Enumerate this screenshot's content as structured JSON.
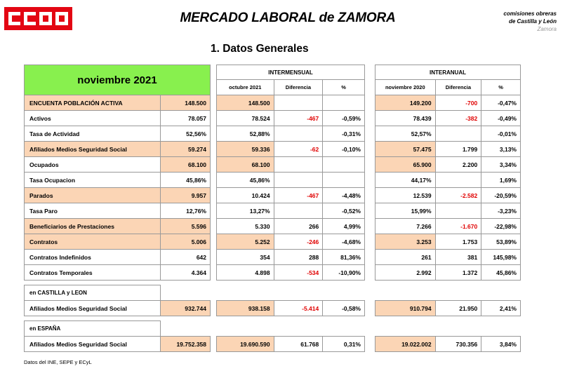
{
  "header": {
    "logo_text": "CCOO",
    "title": "MERCADO LABORAL de ZAMORA",
    "org_line1": "comisiones obreras",
    "org_line2": "de Castilla y León",
    "org_line3": "Zamora",
    "section": "1.   Datos Generales"
  },
  "colors": {
    "logo_red": "#e30613",
    "title_green": "#88f04e",
    "highlight_peach": "#fbd5b5",
    "negative_red": "#e00000"
  },
  "main": {
    "period": "noviembre 2021",
    "rows": [
      {
        "label": "ENCUENTA POBLACIÓN ACTIVA",
        "value": "148.500"
      },
      {
        "label": "Activos",
        "value": "78.057"
      },
      {
        "label": "Tasa de Actividad",
        "value": "52,56%"
      },
      {
        "label": "Afiliados Medios Seguridad Social",
        "value": "59.274"
      },
      {
        "label": "Ocupados",
        "value": "68.100"
      },
      {
        "label": "Tasa Ocupacion",
        "value": "45,86%"
      },
      {
        "label": "Parados",
        "value": "9.957"
      },
      {
        "label": "Tasa Paro",
        "value": "12,76%"
      },
      {
        "label": "Beneficiarios de Prestaciones",
        "value": "5.596"
      },
      {
        "label": "Contratos",
        "value": "5.006"
      },
      {
        "label": "Contratos Indefinidos",
        "value": "642"
      },
      {
        "label": "Contratos Temporales",
        "value": "4.364"
      }
    ],
    "cyl_group": "en  CASTILLA y LEON",
    "cyl_label": "Afiliados Medios Seguridad Social",
    "cyl_value": "932.744",
    "esp_group": "en  ESPAÑA",
    "esp_label": "Afiliados Medios Seguridad Social",
    "esp_value": "19.752.358"
  },
  "intermensual": {
    "title": "INTERMENSUAL",
    "col1": "octubre 2021",
    "col2": "Diferencia",
    "col3": "%",
    "rows": [
      {
        "v": "148.500",
        "d": "",
        "p": ""
      },
      {
        "v": "78.524",
        "d": "-467",
        "p": "-0,59%"
      },
      {
        "v": "52,88%",
        "d": "",
        "p": "-0,31%"
      },
      {
        "v": "59.336",
        "d": "-62",
        "p": "-0,10%"
      },
      {
        "v": "68.100",
        "d": "",
        "p": ""
      },
      {
        "v": "45,86%",
        "d": "",
        "p": ""
      },
      {
        "v": "10.424",
        "d": "-467",
        "p": "-4,48%"
      },
      {
        "v": "13,27%",
        "d": "",
        "p": "-0,52%"
      },
      {
        "v": "5.330",
        "d": "266",
        "p": "4,99%"
      },
      {
        "v": "5.252",
        "d": "-246",
        "p": "-4,68%"
      },
      {
        "v": "354",
        "d": "288",
        "p": "81,36%"
      },
      {
        "v": "4.898",
        "d": "-534",
        "p": "-10,90%"
      }
    ],
    "cyl": {
      "v": "938.158",
      "d": "-5.414",
      "p": "-0,58%"
    },
    "esp": {
      "v": "19.690.590",
      "d": "61.768",
      "p": "0,31%"
    }
  },
  "interanual": {
    "title": "INTERANUAL",
    "col1": "noviembre 2020",
    "col2": "Diferencia",
    "col3": "%",
    "rows": [
      {
        "v": "149.200",
        "d": "-700",
        "p": "-0,47%"
      },
      {
        "v": "78.439",
        "d": "-382",
        "p": "-0,49%"
      },
      {
        "v": "52,57%",
        "d": "",
        "p": "-0,01%"
      },
      {
        "v": "57.475",
        "d": "1.799",
        "p": "3,13%"
      },
      {
        "v": "65.900",
        "d": "2.200",
        "p": "3,34%"
      },
      {
        "v": "44,17%",
        "d": "",
        "p": "1,69%"
      },
      {
        "v": "12.539",
        "d": "-2.582",
        "p": "-20,59%"
      },
      {
        "v": "15,99%",
        "d": "",
        "p": "-3,23%"
      },
      {
        "v": "7.266",
        "d": "-1.670",
        "p": "-22,98%"
      },
      {
        "v": "3.253",
        "d": "1.753",
        "p": "53,89%"
      },
      {
        "v": "261",
        "d": "381",
        "p": "145,98%"
      },
      {
        "v": "2.992",
        "d": "1.372",
        "p": "45,86%"
      }
    ],
    "cyl": {
      "v": "910.794",
      "d": "21.950",
      "p": "2,41%"
    },
    "esp": {
      "v": "19.022.002",
      "d": "730.356",
      "p": "3,84%"
    }
  },
  "footer": "Datos del INE, SEPE y ECyL"
}
